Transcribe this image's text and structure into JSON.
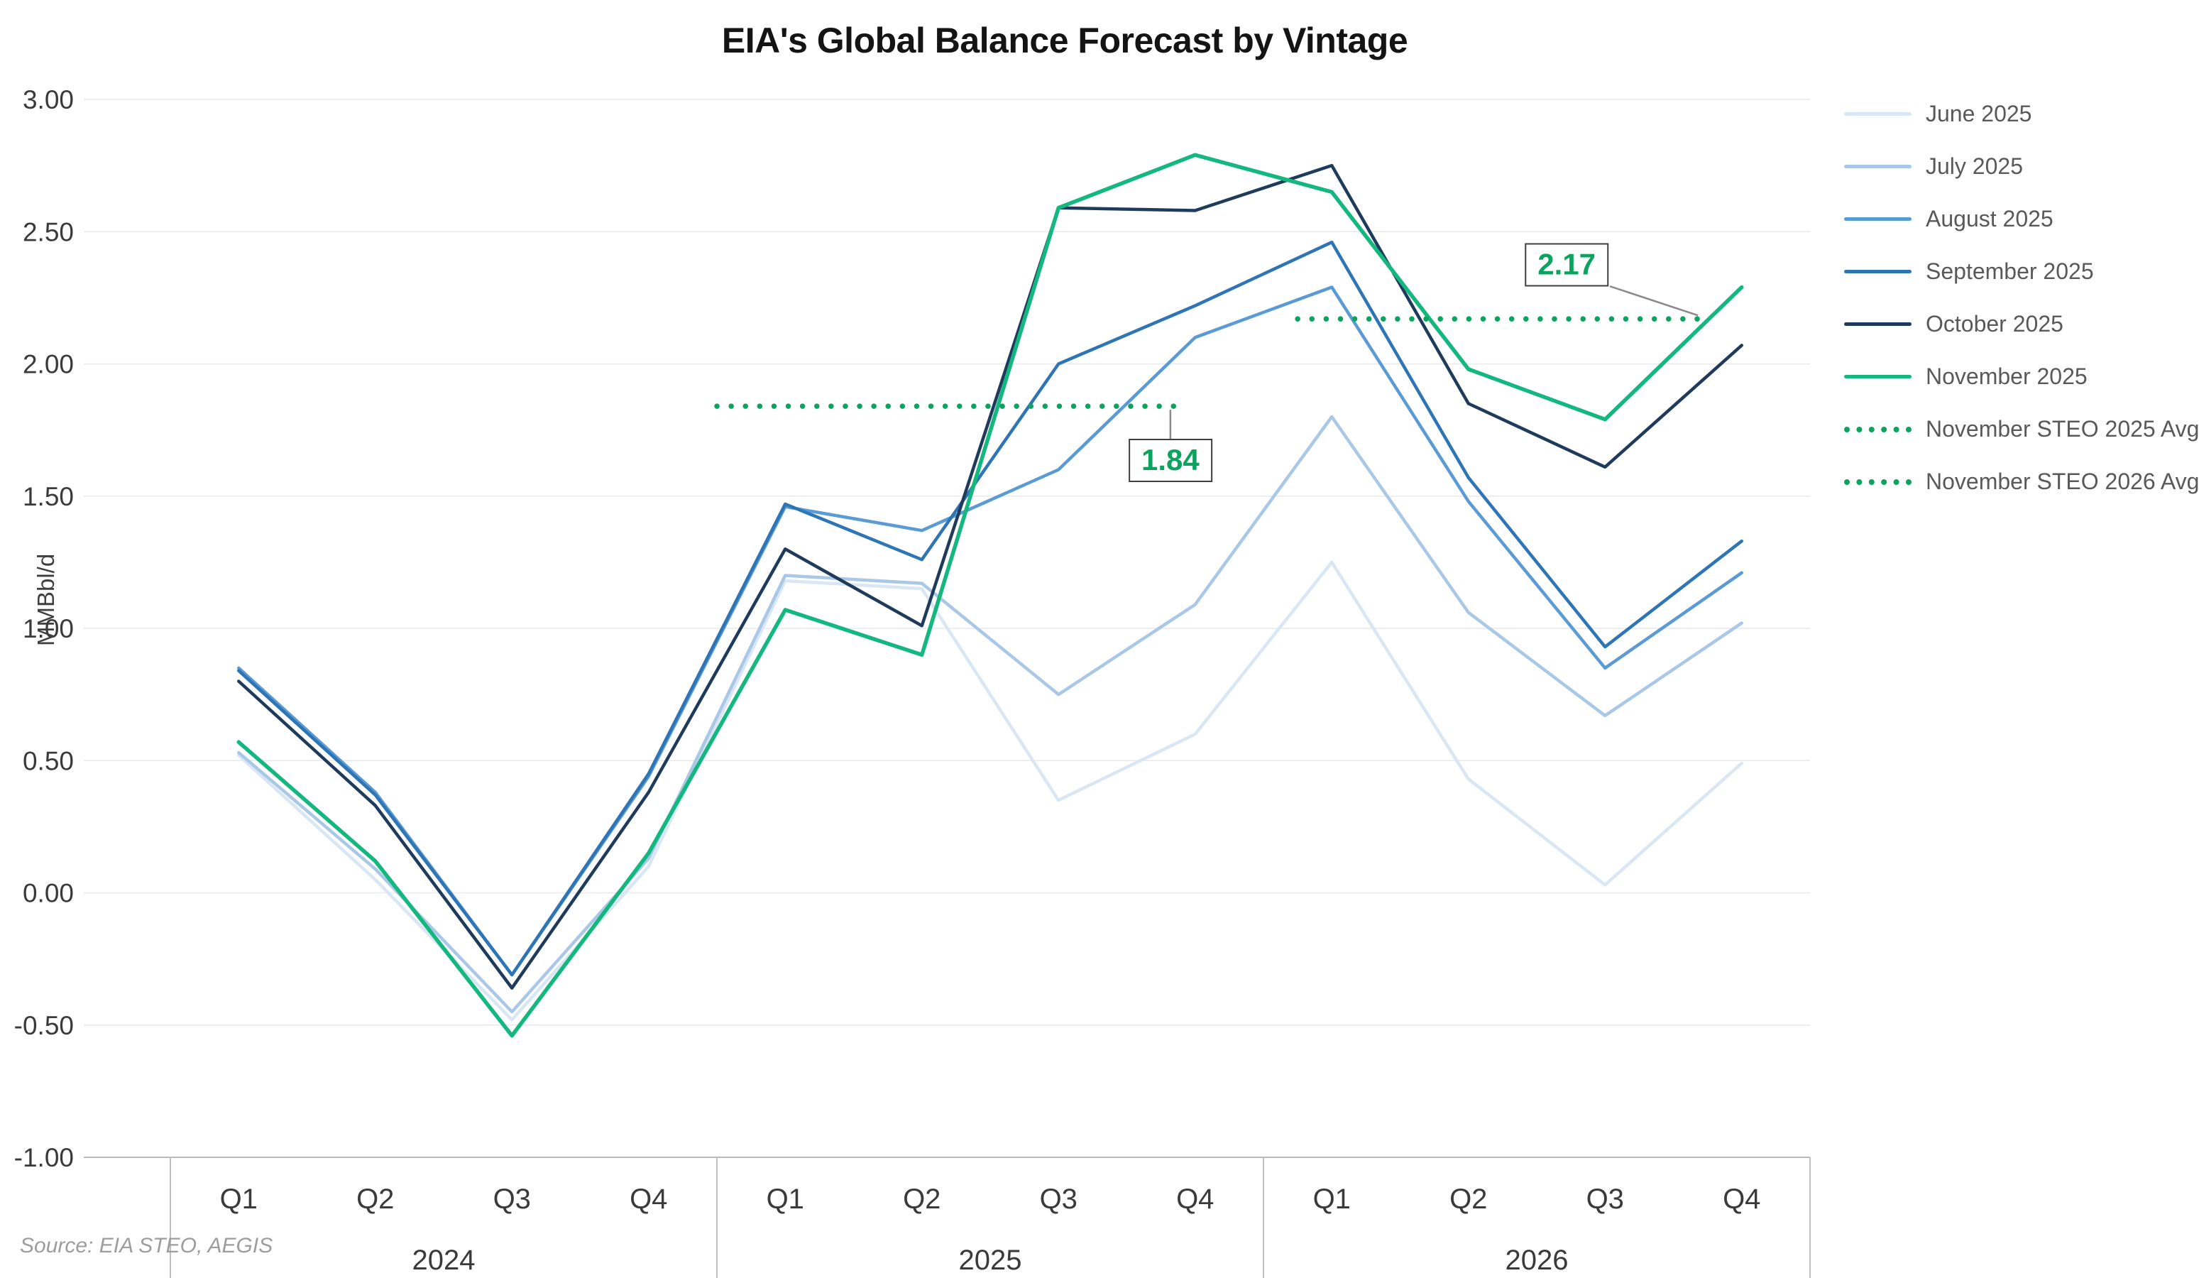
{
  "chart": {
    "title": "EIA's Global Balance Forecast by Vintage",
    "ylabel": "MMBbl/d",
    "source": "Source: EIA STEO, AEGIS"
  },
  "chart_data": {
    "type": "line",
    "title": "EIA's Global Balance Forecast by Vintage",
    "xlabel": "",
    "ylabel": "MMBbl/d",
    "ylim": [
      -1.0,
      3.0
    ],
    "yticks": [
      "3.00",
      "2.50",
      "2.00",
      "1.50",
      "1.00",
      "0.50",
      "0.00",
      "-0.50",
      "-1.00"
    ],
    "grid": "horizontal",
    "legend_position": "right",
    "quarters": [
      "Q1",
      "Q2",
      "Q3",
      "Q4",
      "Q1",
      "Q2",
      "Q3",
      "Q4",
      "Q1",
      "Q2",
      "Q3",
      "Q4"
    ],
    "year_groups": [
      {
        "label": "2024",
        "start": 0,
        "span": 4
      },
      {
        "label": "2025",
        "start": 4,
        "span": 4
      },
      {
        "label": "2026",
        "start": 8,
        "span": 4
      }
    ],
    "series": [
      {
        "name": "June 2025",
        "color": "#d9e6f4",
        "values": [
          0.52,
          0.05,
          -0.48,
          0.1,
          1.18,
          1.15,
          0.35,
          0.6,
          1.25,
          0.43,
          0.03,
          0.49
        ]
      },
      {
        "name": "July 2025",
        "color": "#a9c7e6",
        "values": [
          0.53,
          0.09,
          -0.45,
          0.13,
          1.2,
          1.17,
          0.75,
          1.09,
          1.8,
          1.06,
          0.67,
          1.02
        ]
      },
      {
        "name": "August 2025",
        "color": "#5b9bd5",
        "values": [
          0.85,
          0.38,
          -0.31,
          0.44,
          1.46,
          1.37,
          1.6,
          2.1,
          2.29,
          1.48,
          0.85,
          1.21
        ]
      },
      {
        "name": "September 2025",
        "color": "#2e75b6",
        "values": [
          0.84,
          0.37,
          -0.31,
          0.45,
          1.47,
          1.26,
          2.0,
          2.22,
          2.46,
          1.57,
          0.93,
          1.33
        ]
      },
      {
        "name": "October 2025",
        "color": "#1f3b5c",
        "values": [
          0.8,
          0.33,
          -0.36,
          0.38,
          1.3,
          1.01,
          2.59,
          2.58,
          2.75,
          1.85,
          1.61,
          2.07
        ]
      },
      {
        "name": "November 2025",
        "color": "#14b87f",
        "values": [
          0.57,
          0.12,
          -0.54,
          0.15,
          1.07,
          0.9,
          2.59,
          2.79,
          2.65,
          1.98,
          1.79,
          2.29
        ]
      }
    ],
    "avg_lines": [
      {
        "name": "November STEO 2025 Avg",
        "value": 1.84,
        "label": "1.84",
        "color": "#0ca35f",
        "span": [
          4.0,
          7.35
        ],
        "callout": "below"
      },
      {
        "name": "November STEO 2026 Avg",
        "value": 2.17,
        "label": "2.17",
        "color": "#0ca35f",
        "span": [
          8.25,
          11.2
        ],
        "callout": "above"
      }
    ]
  }
}
